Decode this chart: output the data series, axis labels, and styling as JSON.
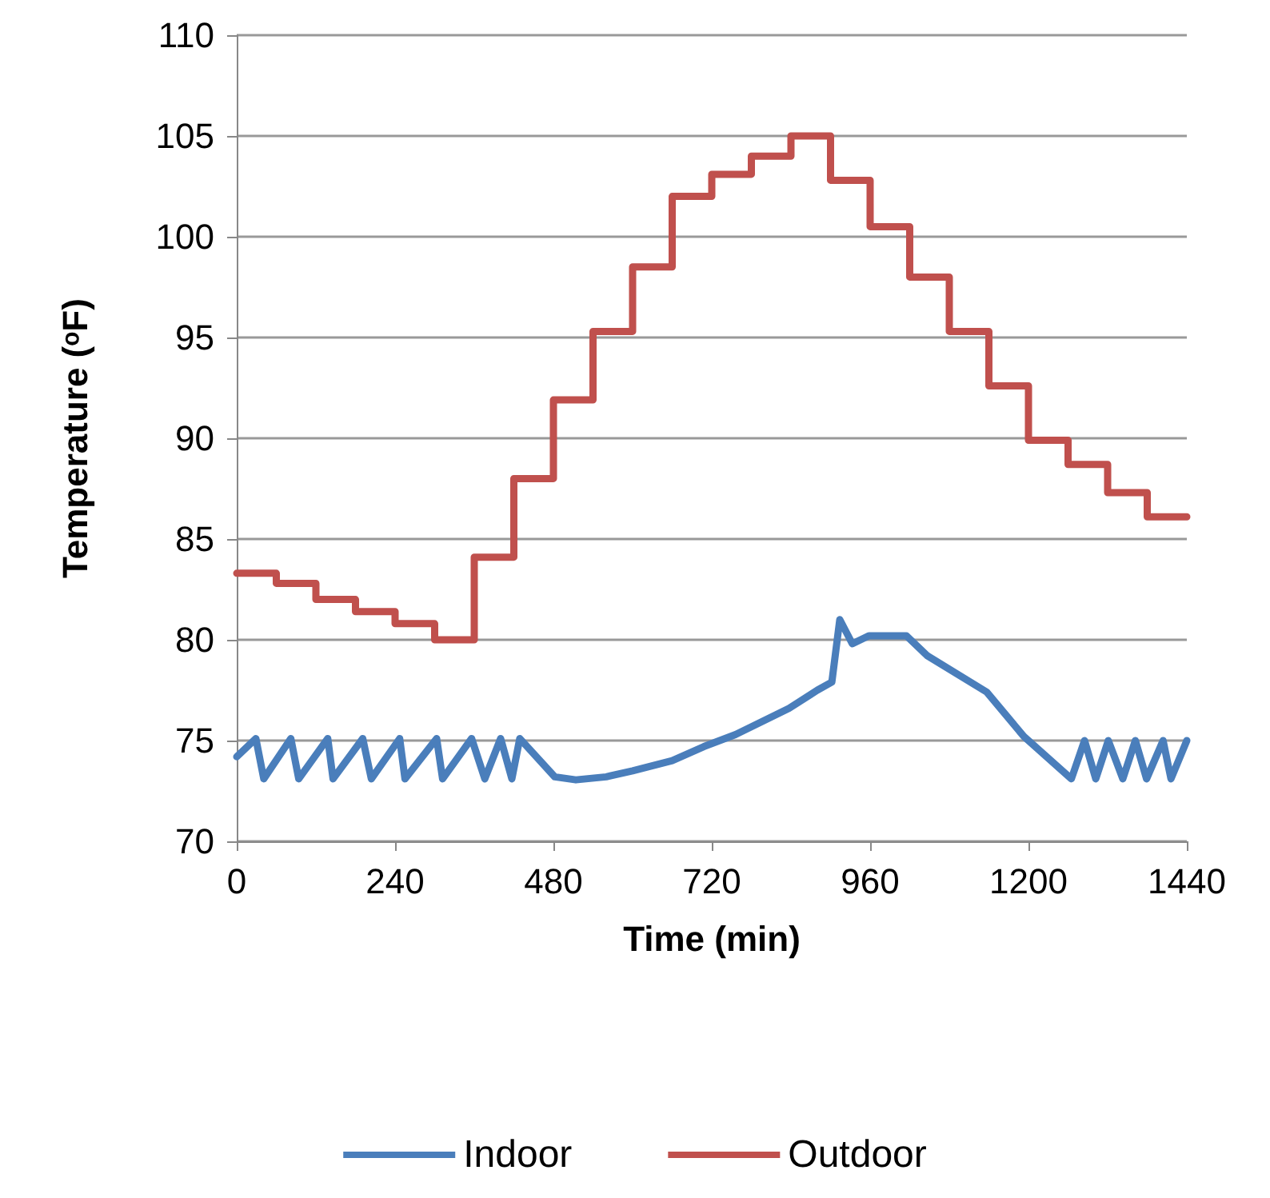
{
  "chart_data": {
    "type": "line",
    "xlabel": "Time (min)",
    "ylabel": "Temperature (ᵒF)",
    "xlim": [
      0,
      1440
    ],
    "xticks": [
      0,
      240,
      480,
      720,
      960,
      1200,
      1440
    ],
    "ylim": [
      70,
      110
    ],
    "yticks": [
      70,
      75,
      80,
      85,
      90,
      95,
      100,
      105,
      110
    ],
    "grid": "y",
    "legend": "bottom",
    "marker": "none",
    "line_style": "solid",
    "series": [
      {
        "name": "Indoor",
        "color": "#4a7ebb",
        "x": [
          0,
          29,
          41,
          82,
          94,
          138,
          146,
          191,
          204,
          247,
          255,
          303,
          312,
          356,
          376,
          400,
          417,
          429,
          482,
          514,
          560,
          600,
          660,
          708,
          756,
          837,
          880,
          902,
          914,
          933,
          958,
          1015,
          1047,
          1137,
          1193,
          1265,
          1285,
          1302,
          1321,
          1343,
          1362,
          1379,
          1404,
          1416,
          1440
        ],
        "values": [
          74.2,
          75.1,
          73.1,
          75.1,
          73.1,
          75.1,
          73.1,
          75.1,
          73.1,
          75.1,
          73.1,
          75.1,
          73.1,
          75.1,
          73.1,
          75.1,
          73.1,
          75.1,
          73.2,
          73.05,
          73.2,
          73.5,
          74.0,
          74.7,
          75.3,
          76.6,
          77.5,
          77.9,
          81.0,
          79.8,
          80.2,
          80.2,
          79.2,
          77.4,
          75.2,
          73.1,
          75.0,
          73.1,
          75.0,
          73.1,
          75.0,
          73.1,
          75.0,
          73.1,
          75.0
        ]
      },
      {
        "name": "Outdoor",
        "color": "#c0504d",
        "type": "step",
        "x": [
          0,
          60,
          120,
          180,
          240,
          300,
          360,
          420,
          480,
          540,
          600,
          660,
          720,
          780,
          840,
          900,
          960,
          1020,
          1080,
          1140,
          1200,
          1260,
          1320,
          1380,
          1440
        ],
        "values": [
          83.3,
          82.8,
          82.0,
          81.4,
          80.8,
          80.0,
          84.1,
          88.0,
          91.9,
          95.3,
          98.5,
          102.0,
          103.1,
          104.0,
          105.0,
          102.8,
          100.5,
          98.0,
          95.3,
          92.6,
          89.9,
          88.7,
          87.3,
          86.1,
          86.1
        ]
      }
    ]
  }
}
